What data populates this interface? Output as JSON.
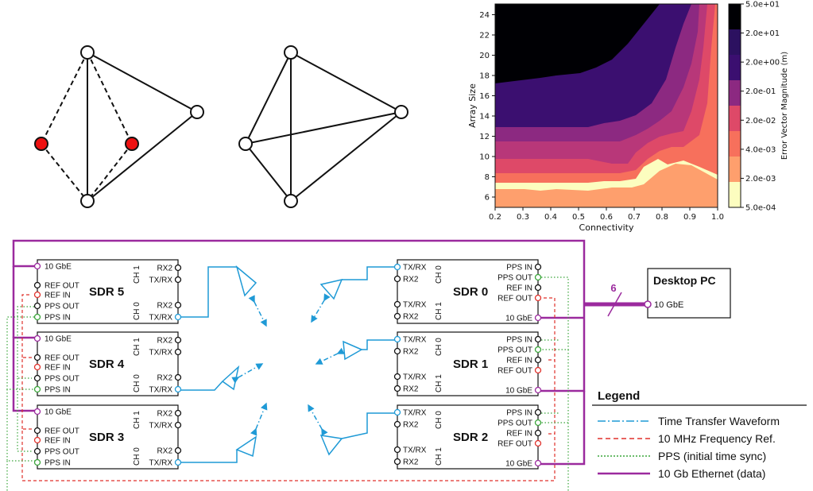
{
  "heatmap": {
    "ylabel": "Array Size",
    "xlabel": "Connectivity",
    "xticks": [
      "0.2",
      "0.3",
      "0.4",
      "0.5",
      "0.6",
      "0.7",
      "0.8",
      "0.9",
      "1.0"
    ],
    "yticks": [
      "6",
      "8",
      "10",
      "12",
      "14",
      "16",
      "18",
      "20",
      "22",
      "24"
    ],
    "colorbar_label": "Error Vector Magnitude (m)",
    "colorbar_ticks": [
      "5.0e+01",
      "2.0e+01",
      "2.0e+00",
      "2.0e-01",
      "2.0e-02",
      "4.0e-03",
      "2.0e-03",
      "5.0e-04"
    ],
    "colors": [
      "#000004",
      "#2c1160",
      "#3b0f70",
      "#8c2981",
      "#de4968",
      "#f7705c",
      "#fe9f6d",
      "#fcfdbf"
    ]
  },
  "sdrs": [
    {
      "name": "SDR 5",
      "id": "sdr5"
    },
    {
      "name": "SDR 4",
      "id": "sdr4"
    },
    {
      "name": "SDR 3",
      "id": "sdr3"
    },
    {
      "name": "SDR 0",
      "id": "sdr0"
    },
    {
      "name": "SDR 1",
      "id": "sdr1"
    },
    {
      "name": "SDR 2",
      "id": "sdr2"
    }
  ],
  "ports": {
    "gbe": "10 GbE",
    "ref_out": "REF OUT",
    "ref_in": "REF IN",
    "pps_out": "PPS OUT",
    "pps_in": "PPS IN",
    "rx2": "RX2",
    "txrx": "TX/RX",
    "ch0": "CH 0",
    "ch1": "CH 1"
  },
  "desktop": {
    "title": "Desktop PC",
    "port": "10 GbE",
    "bus_count": "6"
  },
  "legend": {
    "title": "Legend",
    "items": [
      {
        "label": "Time Transfer Waveform",
        "color": "#1f9ad6"
      },
      {
        "label": "10 MHz Frequency Ref.",
        "color": "#e0312b"
      },
      {
        "label": "PPS (initial time sync)",
        "color": "#3aa53a"
      },
      {
        "label": "10 Gb Ethernet (data)",
        "color": "#9b2a9e"
      }
    ]
  }
}
